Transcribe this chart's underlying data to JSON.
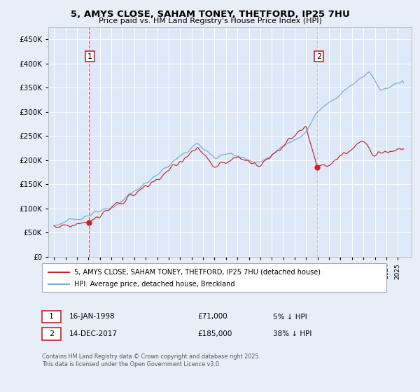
{
  "title1": "5, AMYS CLOSE, SAHAM TONEY, THETFORD, IP25 7HU",
  "title2": "Price paid vs. HM Land Registry's House Price Index (HPI)",
  "legend_line1": "5, AMYS CLOSE, SAHAM TONEY, THETFORD, IP25 7HU (detached house)",
  "legend_line2": "HPI: Average price, detached house, Breckland",
  "annotation1_label": "1",
  "annotation1_date": "16-JAN-1998",
  "annotation1_price": "£71,000",
  "annotation1_hpi": "5% ↓ HPI",
  "annotation2_label": "2",
  "annotation2_date": "14-DEC-2017",
  "annotation2_price": "£185,000",
  "annotation2_hpi": "38% ↓ HPI",
  "footnote": "Contains HM Land Registry data © Crown copyright and database right 2025.\nThis data is licensed under the Open Government Licence v3.0.",
  "sale1_year": 1998.04,
  "sale1_price": 71000,
  "sale2_year": 2017.95,
  "sale2_price": 185000,
  "hpi_color": "#7aaad0",
  "price_color": "#cc2222",
  "vline1_color": "#cc4444",
  "vline2_color": "#aabbcc",
  "bg_color": "#e8eef8",
  "plot_bg": "#dde8f8",
  "grid_color": "#ffffff",
  "annotation_box_color": "#cc2222",
  "ylim_max": 475000,
  "ylim_min": 0,
  "xlim_min": 1994.5,
  "xlim_max": 2026.2
}
